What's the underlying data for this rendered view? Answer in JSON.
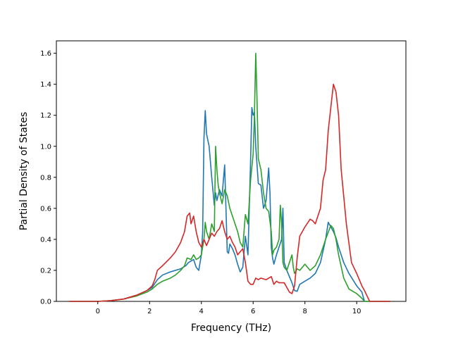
{
  "chart_data": {
    "type": "line",
    "title": "",
    "xlabel": "Frequency (THz)",
    "ylabel": "Partial Density of States",
    "xlim": [
      -1.6,
      11.9
    ],
    "ylim": [
      0,
      1.68
    ],
    "xticks": [
      0,
      2,
      4,
      6,
      8,
      10
    ],
    "yticks": [
      0.0,
      0.2,
      0.4,
      0.6,
      0.8,
      1.0,
      1.2,
      1.4,
      1.6
    ],
    "xtick_labels": [
      "0",
      "2",
      "4",
      "6",
      "8",
      "10"
    ],
    "ytick_labels": [
      "0.0",
      "0.2",
      "0.4",
      "0.6",
      "0.8",
      "1.0",
      "1.2",
      "1.4",
      "1.6"
    ],
    "grid": false,
    "legend": "none",
    "series": [
      {
        "color": "#1f77b4",
        "x": [
          -1.1,
          0.0,
          0.5,
          1.0,
          1.5,
          1.9,
          2.1,
          2.3,
          2.5,
          2.8,
          3.0,
          3.2,
          3.4,
          3.5,
          3.6,
          3.7,
          3.8,
          3.9,
          4.0,
          4.05,
          4.1,
          4.15,
          4.2,
          4.3,
          4.4,
          4.5,
          4.55,
          4.6,
          4.7,
          4.8,
          4.9,
          4.95,
          5.0,
          5.05,
          5.1,
          5.2,
          5.3,
          5.4,
          5.5,
          5.6,
          5.7,
          5.8,
          5.9,
          5.95,
          6.0,
          6.05,
          6.1,
          6.2,
          6.3,
          6.4,
          6.5,
          6.6,
          6.65,
          6.7,
          6.75,
          6.8,
          6.9,
          7.0,
          7.1,
          7.15,
          7.2,
          7.3,
          7.4,
          7.5,
          7.6,
          7.7,
          7.8,
          8.0,
          8.2,
          8.4,
          8.6,
          8.8,
          8.9,
          9.0,
          9.1,
          9.2,
          9.3,
          9.5,
          9.7,
          10.0,
          10.2,
          10.3,
          10.5,
          11.3
        ],
        "values": [
          0.0,
          0.0,
          0.005,
          0.015,
          0.04,
          0.07,
          0.09,
          0.14,
          0.17,
          0.19,
          0.2,
          0.21,
          0.23,
          0.25,
          0.26,
          0.27,
          0.22,
          0.2,
          0.3,
          0.45,
          1.05,
          1.23,
          1.08,
          1.0,
          0.8,
          0.62,
          0.7,
          0.65,
          0.72,
          0.68,
          0.88,
          0.6,
          0.32,
          0.31,
          0.37,
          0.34,
          0.3,
          0.24,
          0.19,
          0.22,
          0.42,
          0.3,
          0.9,
          1.25,
          1.2,
          1.22,
          1.0,
          0.76,
          0.75,
          0.6,
          0.65,
          0.86,
          0.7,
          0.35,
          0.28,
          0.24,
          0.3,
          0.35,
          0.4,
          0.6,
          0.25,
          0.2,
          0.16,
          0.12,
          0.07,
          0.065,
          0.11,
          0.13,
          0.15,
          0.18,
          0.25,
          0.4,
          0.51,
          0.48,
          0.45,
          0.41,
          0.35,
          0.25,
          0.18,
          0.1,
          0.06,
          0.0,
          0.0,
          0.0
        ]
      },
      {
        "color": "#2ca02c",
        "x": [
          -1.1,
          0.0,
          0.5,
          1.0,
          1.5,
          1.9,
          2.1,
          2.3,
          2.5,
          2.8,
          3.0,
          3.2,
          3.35,
          3.45,
          3.6,
          3.7,
          3.8,
          3.9,
          4.0,
          4.1,
          4.15,
          4.2,
          4.3,
          4.4,
          4.5,
          4.55,
          4.6,
          4.65,
          4.7,
          4.8,
          4.9,
          5.0,
          5.1,
          5.2,
          5.3,
          5.4,
          5.5,
          5.6,
          5.7,
          5.8,
          5.9,
          6.0,
          6.05,
          6.1,
          6.15,
          6.2,
          6.3,
          6.4,
          6.5,
          6.6,
          6.7,
          6.75,
          6.8,
          6.9,
          7.0,
          7.05,
          7.1,
          7.15,
          7.2,
          7.3,
          7.4,
          7.5,
          7.55,
          7.6,
          7.7,
          7.8,
          7.9,
          8.0,
          8.2,
          8.4,
          8.6,
          8.8,
          9.0,
          9.1,
          9.2,
          9.3,
          9.5,
          9.7,
          10.0,
          10.2,
          10.3,
          10.5,
          11.3
        ],
        "values": [
          0.0,
          0.0,
          0.005,
          0.015,
          0.035,
          0.06,
          0.08,
          0.11,
          0.13,
          0.15,
          0.17,
          0.2,
          0.23,
          0.28,
          0.27,
          0.3,
          0.27,
          0.28,
          0.3,
          0.4,
          0.51,
          0.45,
          0.4,
          0.5,
          0.45,
          1.0,
          0.85,
          0.75,
          0.7,
          0.63,
          0.72,
          0.68,
          0.6,
          0.55,
          0.5,
          0.45,
          0.38,
          0.35,
          0.56,
          0.5,
          0.78,
          0.95,
          1.2,
          1.6,
          1.3,
          0.92,
          0.85,
          0.7,
          0.6,
          0.58,
          0.45,
          0.3,
          0.33,
          0.35,
          0.4,
          0.62,
          0.5,
          0.25,
          0.22,
          0.2,
          0.25,
          0.3,
          0.22,
          0.18,
          0.21,
          0.2,
          0.22,
          0.24,
          0.2,
          0.23,
          0.3,
          0.4,
          0.49,
          0.47,
          0.4,
          0.3,
          0.15,
          0.08,
          0.05,
          0.02,
          0.0,
          0.0,
          0.0
        ]
      },
      {
        "color": "#d62728",
        "x": [
          -1.1,
          0.0,
          0.5,
          1.0,
          1.5,
          1.9,
          2.1,
          2.2,
          2.3,
          2.5,
          2.8,
          3.0,
          3.2,
          3.35,
          3.45,
          3.55,
          3.6,
          3.7,
          3.8,
          3.9,
          4.0,
          4.1,
          4.2,
          4.3,
          4.4,
          4.5,
          4.6,
          4.7,
          4.8,
          4.9,
          5.0,
          5.1,
          5.2,
          5.3,
          5.4,
          5.5,
          5.6,
          5.7,
          5.8,
          5.9,
          6.0,
          6.1,
          6.2,
          6.3,
          6.5,
          6.7,
          6.8,
          6.9,
          7.0,
          7.2,
          7.4,
          7.5,
          7.6,
          7.7,
          7.8,
          8.0,
          8.2,
          8.3,
          8.4,
          8.6,
          8.7,
          8.8,
          8.9,
          9.0,
          9.1,
          9.2,
          9.3,
          9.4,
          9.6,
          9.8,
          10.0,
          10.2,
          10.3,
          10.5,
          11.3
        ],
        "values": [
          0.0,
          0.0,
          0.005,
          0.015,
          0.04,
          0.07,
          0.1,
          0.14,
          0.2,
          0.23,
          0.28,
          0.32,
          0.38,
          0.45,
          0.55,
          0.57,
          0.5,
          0.55,
          0.45,
          0.38,
          0.35,
          0.4,
          0.36,
          0.4,
          0.44,
          0.42,
          0.45,
          0.47,
          0.52,
          0.45,
          0.4,
          0.42,
          0.38,
          0.35,
          0.3,
          0.32,
          0.34,
          0.25,
          0.13,
          0.11,
          0.11,
          0.15,
          0.14,
          0.15,
          0.14,
          0.16,
          0.11,
          0.13,
          0.12,
          0.12,
          0.06,
          0.05,
          0.1,
          0.28,
          0.42,
          0.48,
          0.53,
          0.52,
          0.5,
          0.6,
          0.78,
          0.85,
          1.1,
          1.25,
          1.4,
          1.35,
          1.2,
          0.85,
          0.5,
          0.25,
          0.18,
          0.1,
          0.07,
          0.0,
          0.0
        ]
      }
    ]
  }
}
